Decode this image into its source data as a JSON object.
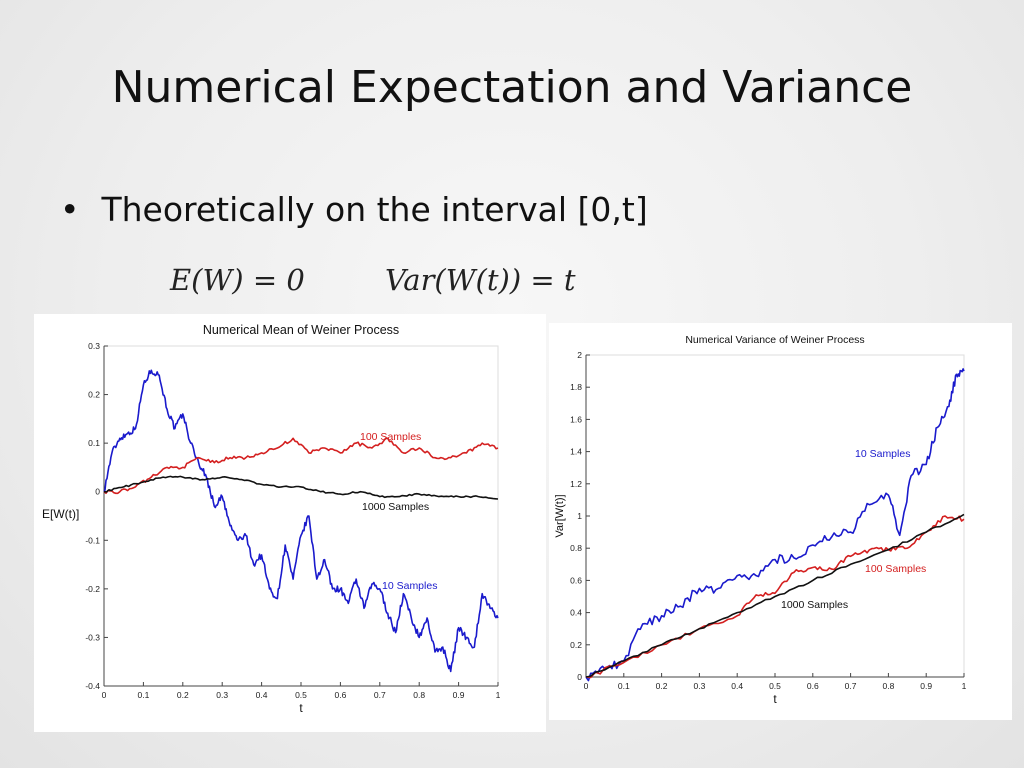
{
  "slide": {
    "title": "Numerical Expectation and Variance",
    "bullet": "Theoretically on the interval [0,t]",
    "formula_mean": "E(W) = 0",
    "formula_var": "Var(W(t)) = t"
  },
  "chart_data": [
    {
      "type": "line",
      "title": "Numerical Mean of Weiner Process",
      "xlabel": "t",
      "ylabel": "E[W(t)]",
      "xlim": [
        0,
        1
      ],
      "ylim": [
        -0.4,
        0.3
      ],
      "xticks": [
        "0",
        "0.1",
        "0.2",
        "0.3",
        "0.4",
        "0.5",
        "0.6",
        "0.7",
        "0.8",
        "0.9",
        "1"
      ],
      "yticks": [
        "0.3",
        "0.2",
        "0.1",
        "0",
        "-0.1",
        "-0.2",
        "-0.3",
        "-0.4"
      ],
      "series": [
        {
          "name": "10 Samples",
          "color": "#1a1acc",
          "x": [
            0,
            0.02,
            0.04,
            0.06,
            0.08,
            0.1,
            0.12,
            0.14,
            0.16,
            0.18,
            0.2,
            0.22,
            0.24,
            0.26,
            0.28,
            0.3,
            0.32,
            0.34,
            0.36,
            0.38,
            0.4,
            0.42,
            0.44,
            0.46,
            0.48,
            0.5,
            0.52,
            0.54,
            0.56,
            0.58,
            0.6,
            0.62,
            0.64,
            0.66,
            0.68,
            0.7,
            0.72,
            0.74,
            0.76,
            0.78,
            0.8,
            0.82,
            0.84,
            0.86,
            0.88,
            0.9,
            0.92,
            0.94,
            0.96,
            0.98,
            1.0
          ],
          "y": [
            0,
            0.08,
            0.11,
            0.12,
            0.13,
            0.22,
            0.25,
            0.24,
            0.17,
            0.13,
            0.16,
            0.1,
            0.06,
            0.03,
            -0.03,
            -0.01,
            -0.07,
            -0.1,
            -0.09,
            -0.15,
            -0.13,
            -0.2,
            -0.22,
            -0.11,
            -0.18,
            -0.09,
            -0.05,
            -0.18,
            -0.14,
            -0.2,
            -0.2,
            -0.23,
            -0.18,
            -0.24,
            -0.19,
            -0.2,
            -0.25,
            -0.29,
            -0.21,
            -0.26,
            -0.3,
            -0.26,
            -0.33,
            -0.32,
            -0.37,
            -0.28,
            -0.3,
            -0.32,
            -0.21,
            -0.24,
            -0.26
          ]
        },
        {
          "name": "100 Samples",
          "color": "#d42020",
          "x": [
            0,
            0.04,
            0.08,
            0.12,
            0.16,
            0.2,
            0.24,
            0.28,
            0.32,
            0.36,
            0.4,
            0.44,
            0.48,
            0.52,
            0.56,
            0.6,
            0.64,
            0.68,
            0.72,
            0.76,
            0.8,
            0.84,
            0.88,
            0.92,
            0.96,
            1.0
          ],
          "y": [
            0,
            0.0,
            0.01,
            0.03,
            0.05,
            0.05,
            0.07,
            0.06,
            0.07,
            0.07,
            0.08,
            0.09,
            0.11,
            0.08,
            0.09,
            0.08,
            0.1,
            0.09,
            0.11,
            0.08,
            0.09,
            0.07,
            0.07,
            0.08,
            0.1,
            0.09
          ]
        },
        {
          "name": "1000 Samples",
          "color": "#111111",
          "x": [
            0,
            0.05,
            0.1,
            0.15,
            0.2,
            0.25,
            0.3,
            0.35,
            0.4,
            0.45,
            0.5,
            0.55,
            0.6,
            0.65,
            0.7,
            0.75,
            0.8,
            0.85,
            0.9,
            0.95,
            1.0
          ],
          "y": [
            0,
            0.01,
            0.02,
            0.03,
            0.03,
            0.025,
            0.03,
            0.025,
            0.015,
            0.01,
            0.01,
            0.0,
            -0.005,
            0.0,
            -0.01,
            -0.01,
            -0.005,
            -0.01,
            -0.01,
            -0.01,
            -0.015
          ]
        }
      ]
    },
    {
      "type": "line",
      "title": "Numerical Variance of Weiner Process",
      "xlabel": "t",
      "ylabel": "Var[W(t)]",
      "xlim": [
        0,
        1
      ],
      "ylim": [
        0,
        2
      ],
      "xticks": [
        "0",
        "0.1",
        "0.2",
        "0.3",
        "0.4",
        "0.5",
        "0.6",
        "0.7",
        "0.8",
        "0.9",
        "1"
      ],
      "yticks": [
        "2",
        "1.8",
        "1.6",
        "1.4",
        "1.2",
        "1",
        "0.8",
        "0.6",
        "0.4",
        "0.2",
        "0"
      ],
      "series": [
        {
          "name": "10 Samples",
          "color": "#1a1acc",
          "x": [
            0,
            0.05,
            0.1,
            0.15,
            0.2,
            0.25,
            0.3,
            0.35,
            0.4,
            0.45,
            0.5,
            0.55,
            0.6,
            0.65,
            0.7,
            0.75,
            0.8,
            0.83,
            0.86,
            0.9,
            0.93,
            0.96,
            0.98,
            1.0
          ],
          "y": [
            0,
            0.05,
            0.1,
            0.33,
            0.38,
            0.44,
            0.55,
            0.55,
            0.63,
            0.63,
            0.73,
            0.74,
            0.82,
            0.87,
            0.9,
            1.07,
            1.13,
            0.88,
            1.25,
            1.32,
            1.55,
            1.68,
            1.88,
            1.9
          ]
        },
        {
          "name": "100 Samples",
          "color": "#d42020",
          "x": [
            0,
            0.1,
            0.2,
            0.3,
            0.4,
            0.45,
            0.5,
            0.55,
            0.6,
            0.65,
            0.7,
            0.75,
            0.8,
            0.85,
            0.9,
            0.95,
            1.0
          ],
          "y": [
            0,
            0.09,
            0.2,
            0.3,
            0.38,
            0.51,
            0.52,
            0.65,
            0.68,
            0.67,
            0.75,
            0.79,
            0.79,
            0.8,
            0.9,
            1.0,
            0.98
          ]
        },
        {
          "name": "1000 Samples",
          "color": "#111111",
          "x": [
            0,
            0.1,
            0.2,
            0.3,
            0.4,
            0.5,
            0.6,
            0.7,
            0.8,
            0.9,
            1.0
          ],
          "y": [
            0,
            0.1,
            0.2,
            0.3,
            0.4,
            0.5,
            0.6,
            0.7,
            0.79,
            0.9,
            1.01
          ]
        }
      ]
    }
  ]
}
